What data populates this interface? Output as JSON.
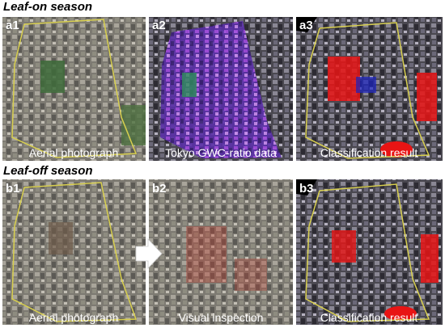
{
  "sections": [
    {
      "title": "Leaf-on season",
      "panels": [
        {
          "id": "a1",
          "caption": "Aerial photograph"
        },
        {
          "id": "a2",
          "caption": "Tokyo GWC-ratio data"
        },
        {
          "id": "a3",
          "caption": "Classification result"
        }
      ]
    },
    {
      "title": "Leaf-off season",
      "panels": [
        {
          "id": "b1",
          "caption": "Aerial photograph"
        },
        {
          "id": "b2",
          "caption": "Visual inspection"
        },
        {
          "id": "b3",
          "caption": "Classification result"
        }
      ]
    }
  ]
}
